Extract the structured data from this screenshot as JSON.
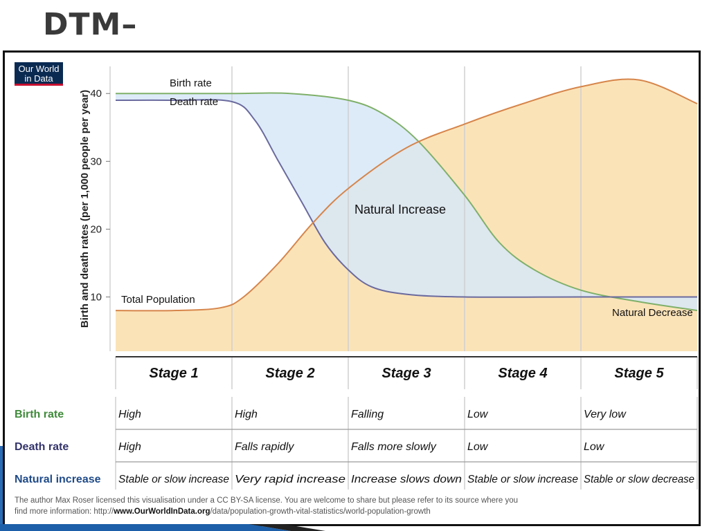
{
  "slide_title": "DTM–",
  "logo": {
    "line1": "Our World",
    "line2": "in Data"
  },
  "chart_data": {
    "type": "line",
    "ylabel": "Birth and death rates (per 1,000 people per year)",
    "xlabel": "",
    "ylim": [
      2,
      44
    ],
    "yticks": [
      10,
      20,
      30,
      40
    ],
    "x_domain": [
      0,
      5
    ],
    "grid": "vertical stage dividers",
    "stages": [
      "Stage 1",
      "Stage 2",
      "Stage 3",
      "Stage 4",
      "Stage 5"
    ],
    "series": [
      {
        "name": "Birth rate",
        "color": "#7fb069",
        "x": [
          0,
          0.5,
          1,
          1.5,
          2,
          2.3,
          2.6,
          3,
          3.3,
          3.6,
          4,
          4.5,
          5
        ],
        "y": [
          40,
          40,
          40,
          40,
          39,
          37,
          33,
          25,
          18,
          14,
          11,
          9.3,
          8
        ]
      },
      {
        "name": "Death rate",
        "color": "#6a6a9e",
        "x": [
          0,
          0.5,
          1,
          1.2,
          1.4,
          1.6,
          1.8,
          2,
          2.2,
          2.5,
          3,
          4,
          5
        ],
        "y": [
          39,
          39,
          38.8,
          36,
          30,
          24,
          18,
          14,
          11.5,
          10.4,
          10,
          10,
          10
        ]
      },
      {
        "name": "Total Population",
        "color": "#d6854a",
        "x": [
          0,
          0.5,
          0.9,
          1.1,
          1.4,
          1.7,
          2,
          2.5,
          3,
          3.5,
          4,
          4.5,
          5
        ],
        "y": [
          8,
          8,
          8.4,
          10,
          15,
          21,
          26,
          32,
          35.5,
          38.5,
          41,
          42,
          38.5
        ]
      }
    ],
    "annotations": [
      "Natural Increase",
      "Natural Decrease"
    ]
  },
  "table": {
    "stages": [
      "Stage 1",
      "Stage 2",
      "Stage 3",
      "Stage 4",
      "Stage 5"
    ],
    "rows": [
      {
        "label": "Birth rate",
        "color": "#3f8a3a",
        "values": [
          "High",
          "High",
          "Falling",
          "Low",
          "Very low"
        ]
      },
      {
        "label": "Death rate",
        "color": "#33336b",
        "values": [
          "High",
          "Falls rapidly",
          "Falls more slowly",
          "Low",
          "Low"
        ]
      },
      {
        "label": "Natural increase",
        "color": "#1f4a88",
        "values": [
          "Stable or slow increase",
          "Very rapid increase",
          "Increase slows down",
          "Stable or slow increase",
          "Stable or slow decrease"
        ]
      }
    ]
  },
  "credit": {
    "line1": "The author Max Roser licensed this visualisation under a CC BY-SA license. You are welcome to share but please refer to its source where you",
    "line2_prefix": "find more information: http://",
    "line2_bold": "www.OurWorldInData.org",
    "line2_suffix": "/data/population-growth-vital-statistics/world-population-growth"
  }
}
